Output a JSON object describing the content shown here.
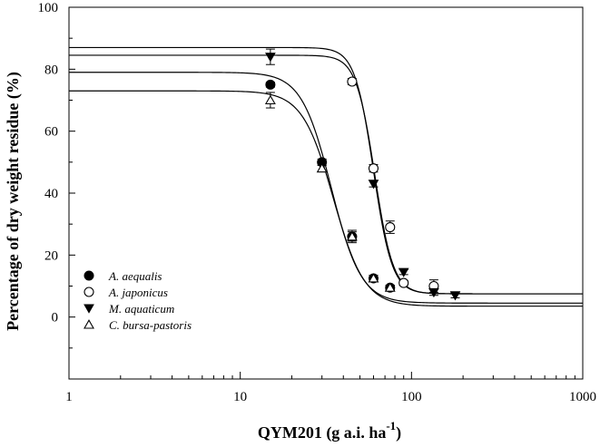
{
  "chart_data": {
    "type": "scatter",
    "xlabel": "QYM201 (g a.i. ha",
    "xlabel_sup": "-1",
    "xlabel_close": ")",
    "ylabel": "Percentage of dry weight residue (%)",
    "x_scale": "log",
    "xlim": [
      1,
      1000
    ],
    "ylim": [
      -20,
      100
    ],
    "x_ticks": [
      1,
      10,
      100,
      1000
    ],
    "x_tick_labels": [
      "1",
      "10",
      "100",
      "1000"
    ],
    "y_ticks": [
      0,
      20,
      40,
      60,
      80,
      100
    ],
    "y_tick_labels": [
      "0",
      "20",
      "40",
      "60",
      "80",
      "100"
    ],
    "grid": false,
    "legend_position": "lower-left",
    "series": [
      {
        "name": "A. aequalis",
        "marker": "filled-circle",
        "points": [
          {
            "x": 15,
            "y": 75,
            "err": 0.8
          },
          {
            "x": 30,
            "y": 50,
            "err": 1.0
          },
          {
            "x": 45,
            "y": 26,
            "err": 2.0
          },
          {
            "x": 60,
            "y": 12.5,
            "err": 1.0
          },
          {
            "x": 75,
            "y": 9.5,
            "err": 0.8
          }
        ],
        "curve": {
          "top": 79,
          "bottom": 4.5,
          "ec50": 34,
          "slope": 5.0
        }
      },
      {
        "name": "A. japonicus",
        "marker": "open-circle",
        "points": [
          {
            "x": 45,
            "y": 76,
            "err": 1.0
          },
          {
            "x": 60,
            "y": 48,
            "err": 1.2
          },
          {
            "x": 75,
            "y": 29,
            "err": 2.0
          },
          {
            "x": 90,
            "y": 11,
            "err": 0.8
          },
          {
            "x": 135,
            "y": 10,
            "err": 2.0
          }
        ],
        "curve": {
          "top": 87,
          "bottom": 7.5,
          "ec50": 60,
          "slope": 8.0
        }
      },
      {
        "name": "M. aquaticum",
        "marker": "filled-triangle-down",
        "points": [
          {
            "x": 15,
            "y": 84,
            "err": 2.5
          },
          {
            "x": 60,
            "y": 43,
            "err": 1.0
          },
          {
            "x": 90,
            "y": 14.5,
            "err": 0.8
          },
          {
            "x": 135,
            "y": 8,
            "err": 1.0
          },
          {
            "x": 180,
            "y": 7,
            "err": 0.8
          }
        ],
        "curve": {
          "top": 84.5,
          "bottom": 7.5,
          "ec50": 61,
          "slope": 8.0
        }
      },
      {
        "name": "C. bursa-pastoris",
        "marker": "open-triangle-up",
        "points": [
          {
            "x": 15,
            "y": 70,
            "err": 2.5
          },
          {
            "x": 30,
            "y": 48,
            "err": 1.0
          },
          {
            "x": 45,
            "y": 26,
            "err": 1.5
          },
          {
            "x": 60,
            "y": 12.5,
            "err": 1.0
          },
          {
            "x": 75,
            "y": 9.5,
            "err": 0.8
          }
        ],
        "curve": {
          "top": 73,
          "bottom": 3.5,
          "ec50": 35,
          "slope": 4.8
        }
      }
    ]
  }
}
